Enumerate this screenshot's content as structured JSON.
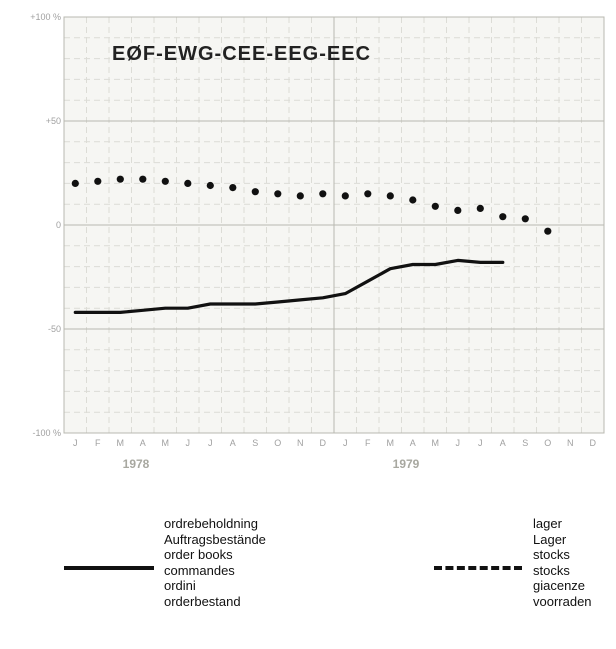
{
  "chart_data": {
    "type": "line",
    "title": "EØF-EWG-CEE-EEG-EEC",
    "y_ticks": [
      "+100 %",
      "+50",
      "0",
      "-50",
      "-100 %"
    ],
    "y_tick_values": [
      100,
      50,
      0,
      -50,
      -100
    ],
    "ylim": [
      -100,
      100
    ],
    "month_labels": [
      "J",
      "F",
      "M",
      "A",
      "M",
      "J",
      "J",
      "A",
      "S",
      "O",
      "N",
      "D",
      "J",
      "F",
      "M",
      "A",
      "M",
      "J",
      "J",
      "A",
      "S",
      "O",
      "N",
      "D"
    ],
    "years": [
      "1978",
      "1979"
    ],
    "grid": true,
    "series": [
      {
        "key": "orders",
        "style": "solid",
        "x": [
          0,
          1,
          2,
          3,
          4,
          5,
          6,
          7,
          8,
          9,
          10,
          11,
          12,
          13,
          14,
          15,
          16,
          17,
          18,
          19,
          20,
          21
        ],
        "values": [
          -42,
          -42,
          -42,
          -41,
          -40,
          -40,
          -38,
          -38,
          -38,
          -37,
          -36,
          -35,
          -33,
          -27,
          -21,
          -19,
          -19,
          -17,
          -18,
          -18,
          null,
          null
        ],
        "labels": [
          "ordrebeholdning",
          "Auftragsbestände",
          "order books",
          "commandes",
          "ordini",
          "orderbestand"
        ]
      },
      {
        "key": "stocks",
        "style": "dotted",
        "x": [
          0,
          1,
          2,
          3,
          4,
          5,
          6,
          7,
          8,
          9,
          10,
          11,
          12,
          13,
          14,
          15,
          16,
          17,
          18,
          19,
          20,
          21
        ],
        "values": [
          20,
          21,
          22,
          22,
          21,
          20,
          19,
          18,
          16,
          15,
          14,
          15,
          14,
          15,
          14,
          12,
          9,
          7,
          8,
          4,
          3,
          -3
        ],
        "labels": [
          "lager",
          "Lager",
          "stocks",
          "stocks",
          "giacenze",
          "voorraden"
        ]
      }
    ],
    "colors": {
      "background": "#f6f6f3",
      "grid_minor": "#dcdcd6",
      "grid_major": "#b8b8b0",
      "tick_text": "#a0a0a0",
      "year_text": "#a8a8a0",
      "line": "#111111"
    }
  }
}
